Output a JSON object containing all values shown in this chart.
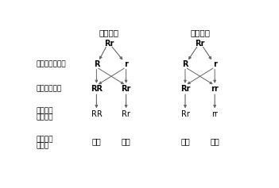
{
  "title1": "盘状南瓜",
  "title2": "盘状南瓜",
  "parent_genotype1": "Rr",
  "parent_genotype2": "Rr",
  "gamete_label": "生殖细胞的基因",
  "zygote_label": "受精卵的基因",
  "offspring_genotype_label1": "子代南瓜",
  "offspring_genotype_label2": "基因组成",
  "offspring_phenotype_label1": "子代南瓜",
  "offspring_phenotype_label2": "的性状",
  "gametes": [
    "R",
    "r",
    "R",
    "r"
  ],
  "zygotes": [
    "RR",
    "Rr",
    "Rr",
    "rr"
  ],
  "offspring_genotypes": [
    "RR",
    "Rr",
    "Rr",
    "rr"
  ],
  "offspring_phenotypes": [
    "盘状",
    "盘状",
    "盘状",
    "球状"
  ],
  "bg_color": "#ffffff",
  "text_color": "#000000",
  "arrow_color": "#666666"
}
